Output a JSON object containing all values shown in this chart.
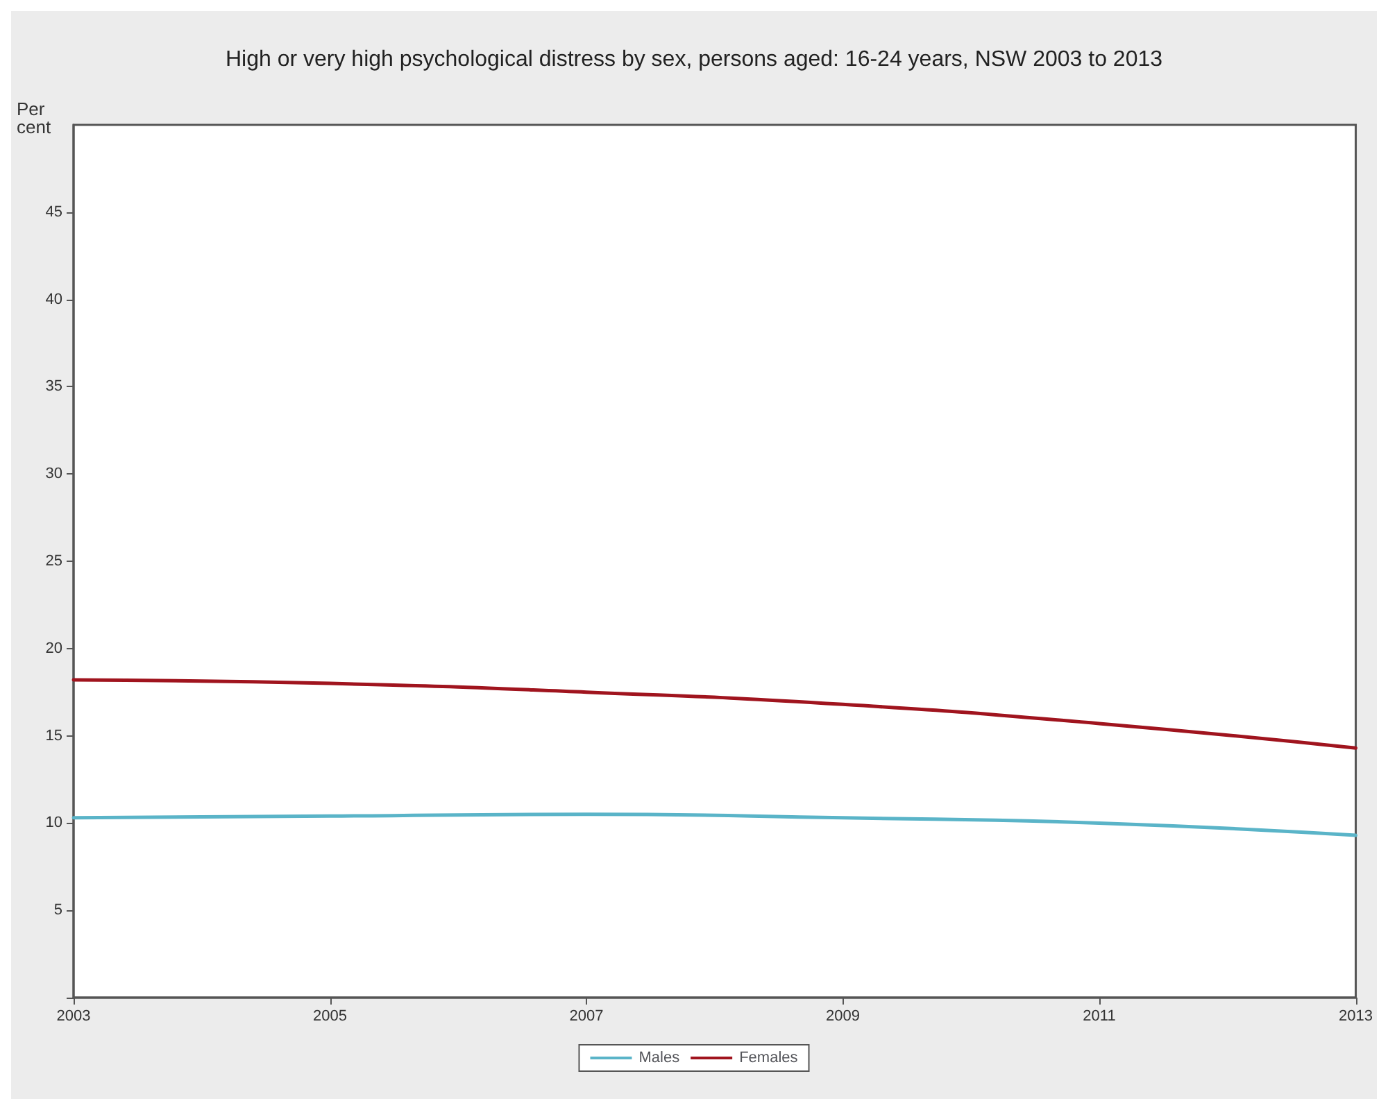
{
  "chart_data": {
    "type": "line",
    "title": "High or very high psychological distress by sex, persons aged: 16-24 years, NSW 2003 to 2013",
    "ylabel": "Per cent",
    "x": [
      2003,
      2005,
      2007,
      2009,
      2011,
      2013
    ],
    "series": [
      {
        "name": "Males",
        "color": "#5ab4c8",
        "values": [
          10.3,
          10.4,
          10.5,
          10.3,
          10.0,
          9.3
        ]
      },
      {
        "name": "Females",
        "color": "#a0141e",
        "values": [
          18.2,
          18.0,
          17.5,
          16.8,
          15.7,
          14.3
        ]
      }
    ],
    "xlim": [
      2003,
      2013
    ],
    "xticks": [
      2003,
      2005,
      2007,
      2009,
      2011,
      2013
    ],
    "ylim": [
      0,
      50
    ],
    "yticks": [
      {
        "value": 0,
        "label": null
      },
      5,
      10,
      15,
      20,
      25,
      30,
      35,
      40,
      45
    ],
    "grid": false,
    "legend": "bottom",
    "marker": "none",
    "line_style": "solid"
  }
}
